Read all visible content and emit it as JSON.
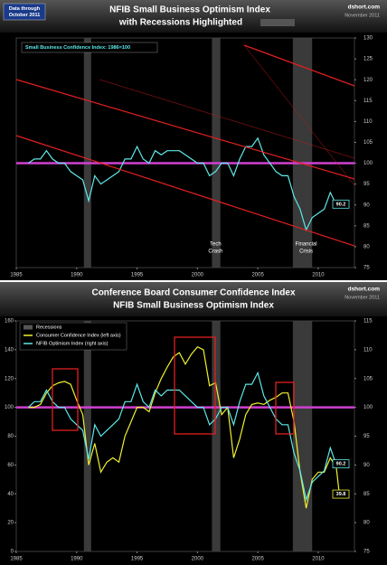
{
  "chart_data": [
    {
      "type": "line",
      "title": "NFIB Small Business Optimism Index",
      "subtitle": "with Recessions Highlighted",
      "source": "dshort.com",
      "date": "November 2011",
      "note": [
        "Data through",
        "October 2011"
      ],
      "annotations": [
        [
          "Tech",
          "Crash"
        ],
        [
          "Financial",
          "Crisis"
        ]
      ],
      "x": [
        1986,
        1986.5,
        1987,
        1987.5,
        1988,
        1988.5,
        1989,
        1989.5,
        1990,
        1990.5,
        1991,
        1991.5,
        1992,
        1992.5,
        1993,
        1993.5,
        1994,
        1994.5,
        1995,
        1995.5,
        1996,
        1996.5,
        1997,
        1997.5,
        1998,
        1998.5,
        1999,
        1999.5,
        2000,
        2000.5,
        2001,
        2001.5,
        2002,
        2002.5,
        2003,
        2003.5,
        2004,
        2004.5,
        2005,
        2005.5,
        2006,
        2006.5,
        2007,
        2007.5,
        2008,
        2008.5,
        2009,
        2009.5,
        2010,
        2010.5,
        2011,
        2011.5,
        2011.75
      ],
      "series": [
        {
          "name": "Small Business Confidence Index: 1986=100",
          "color": "#5ee8e8",
          "values": [
            100,
            101,
            101,
            103,
            101,
            100,
            100,
            98,
            97,
            96,
            91,
            97,
            95,
            96,
            97,
            98,
            101,
            101,
            104,
            101,
            100,
            103,
            102,
            103,
            103,
            103,
            102,
            101,
            100,
            100,
            97,
            98,
            100,
            100,
            97,
            101,
            104,
            104,
            106,
            102,
            100,
            98,
            97,
            97,
            92,
            89,
            84,
            87,
            88,
            89,
            93,
            90,
            90.2
          ]
        }
      ],
      "recessions": [
        [
          1990.6,
          1991.2
        ],
        [
          2001.2,
          2001.9
        ],
        [
          2007.9,
          2009.5
        ]
      ],
      "reference_line": 100,
      "xlim": [
        1985,
        2013
      ],
      "xticks": [
        1985,
        1990,
        1995,
        2000,
        2005,
        2010
      ],
      "ylim": [
        75,
        130
      ],
      "yticks": [
        75,
        80,
        85,
        90,
        95,
        100,
        105,
        110,
        115,
        120,
        125,
        130
      ],
      "y_axis_side": "right"
    },
    {
      "type": "line",
      "title": "Conference Board Consumer Confidence Index",
      "subtitle": "NFIB Small Business Optimism Index",
      "source": "dshort.com",
      "date": "November 2011",
      "recession_label": "Recessions",
      "x": [
        1986,
        1986.5,
        1987,
        1987.5,
        1988,
        1988.5,
        1989,
        1989.5,
        1990,
        1990.5,
        1991,
        1991.5,
        1992,
        1992.5,
        1993,
        1993.5,
        1994,
        1994.5,
        1995,
        1995.5,
        1996,
        1996.5,
        1997,
        1997.5,
        1998,
        1998.5,
        1999,
        1999.5,
        2000,
        2000.5,
        2001,
        2001.5,
        2002,
        2002.5,
        2003,
        2003.5,
        2004,
        2004.5,
        2005,
        2005.5,
        2006,
        2006.5,
        2007,
        2007.5,
        2008,
        2008.5,
        2009,
        2009.5,
        2010,
        2010.5,
        2011,
        2011.5,
        2011.75
      ],
      "series": [
        {
          "name": "Consumer Confidence Index (left axis)",
          "color": "#f0f030",
          "values": [
            100,
            100,
            102,
            110,
            115,
            117,
            118,
            116,
            105,
            95,
            60,
            75,
            55,
            62,
            65,
            62,
            80,
            90,
            100,
            100,
            97,
            110,
            120,
            128,
            135,
            138,
            130,
            137,
            142,
            140,
            115,
            117,
            95,
            100,
            65,
            78,
            95,
            102,
            103,
            102,
            105,
            107,
            110,
            110,
            90,
            55,
            30,
            50,
            55,
            55,
            65,
            58,
            39.8
          ]
        },
        {
          "name": "NFIB Optimism Index (right axis)",
          "color": "#5ee8e8",
          "axis": "y2",
          "values": [
            100,
            101,
            101,
            103,
            101,
            100,
            100,
            98,
            97,
            96,
            91,
            97,
            95,
            96,
            97,
            98,
            101,
            101,
            104,
            101,
            100,
            103,
            102,
            103,
            103,
            103,
            102,
            101,
            100,
            100,
            97,
            98,
            100,
            100,
            97,
            101,
            104,
            104,
            106,
            102,
            100,
            98,
            97,
            97,
            92,
            89,
            84,
            87,
            88,
            89,
            93,
            90,
            90.2
          ]
        }
      ],
      "recessions": [
        [
          1990.6,
          1991.2
        ],
        [
          2001.2,
          2001.9
        ],
        [
          2007.9,
          2009.5
        ]
      ],
      "reference_line": 100,
      "xlim": [
        1985,
        2013
      ],
      "xticks": [
        1985,
        1990,
        1995,
        2000,
        2005,
        2010
      ],
      "ylim": [
        0,
        160
      ],
      "yticks": [
        0,
        20,
        40,
        60,
        80,
        100,
        120,
        140,
        160
      ],
      "y2lim": [
        75,
        115
      ],
      "y2ticks": [
        75,
        80,
        85,
        90,
        95,
        100,
        105,
        110,
        115
      ]
    }
  ]
}
